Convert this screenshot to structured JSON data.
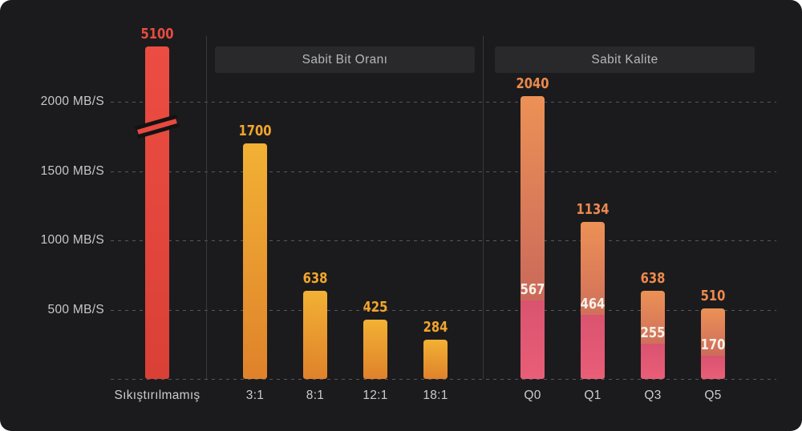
{
  "colors": {
    "background": "#1b1b1d",
    "grid_dash": "#57575b",
    "divider": "#3a3a3e",
    "header_bg": "#29292c",
    "header_text": "#b5b7b7",
    "tick_text": "#c7c7c7",
    "category_text": "#cbcbcb",
    "red_bar": "#e8493e",
    "gold_bar_top": "#f2b134",
    "gold_bar_bottom": "#df822b",
    "sunset_bar_top": "#ec9156",
    "sunset_bar_mid": "#bd595d",
    "pink_segment": "#e05a73",
    "label_red": "#e84b40",
    "label_gold": "#f2a62c",
    "label_orange": "#ec8a4e",
    "label_white": "#f7f1e8"
  },
  "chart_data": {
    "type": "bar",
    "title": "",
    "ylabel": "MB/S",
    "ylim": [
      0,
      2100
    ],
    "grid": "dashed-horizontal",
    "yticks": [
      {
        "value": 2000,
        "label": "2000 MB/S"
      },
      {
        "value": 1500,
        "label": "1500 MB/S"
      },
      {
        "value": 1000,
        "label": "1000 MB/S"
      },
      {
        "value": 500,
        "label": "500 MB/S"
      }
    ],
    "axis_break": {
      "present": true,
      "on_bar": "Sıkıştırılmamış"
    },
    "groups": [
      {
        "title": "",
        "palette": "red",
        "bars": [
          {
            "label": "Sıkıştırılmamış",
            "value": 5100,
            "broken": true
          }
        ]
      },
      {
        "title": "Sabit Bit Oranı",
        "palette": "gold",
        "bars": [
          {
            "label": "3:1",
            "value": 1700
          },
          {
            "label": "8:1",
            "value": 638
          },
          {
            "label": "12:1",
            "value": 425
          },
          {
            "label": "18:1",
            "value": 284
          }
        ]
      },
      {
        "title": "Sabit Kalite",
        "palette": "sunset",
        "bars": [
          {
            "label": "Q0",
            "value": 2040,
            "sub_value": 567
          },
          {
            "label": "Q1",
            "value": 1134,
            "sub_value": 464
          },
          {
            "label": "Q3",
            "value": 638,
            "sub_value": 255
          },
          {
            "label": "Q5",
            "value": 510,
            "sub_value": 170
          }
        ]
      }
    ]
  }
}
